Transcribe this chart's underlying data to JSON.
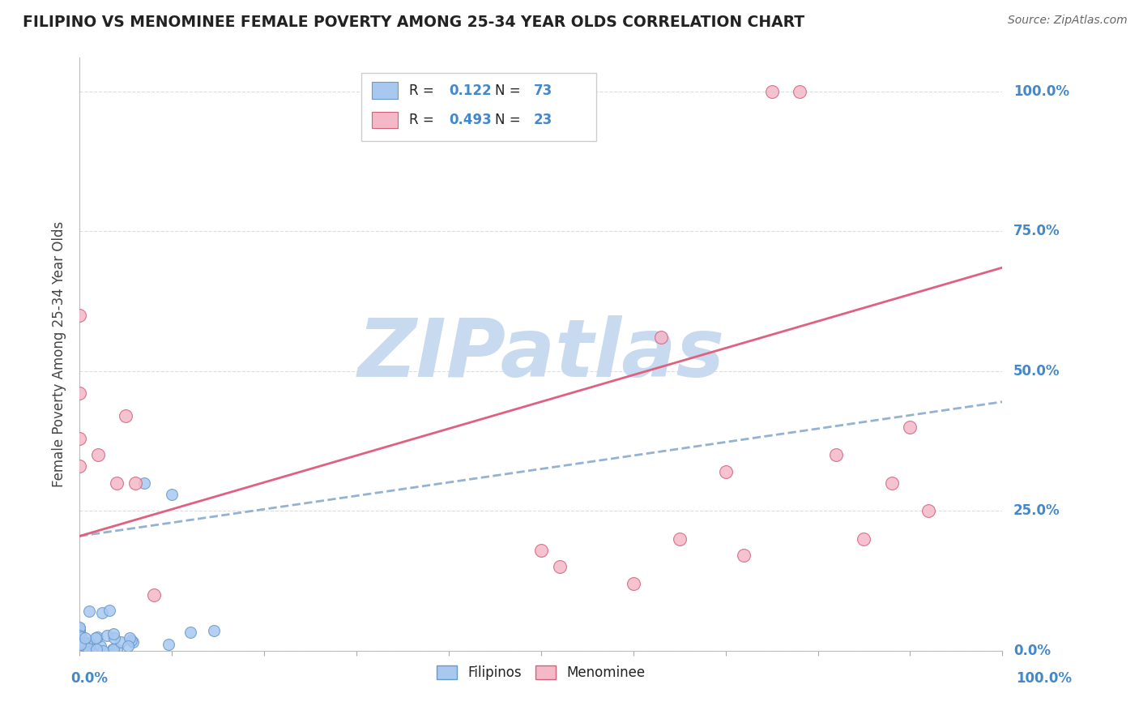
{
  "title": "FILIPINO VS MENOMINEE FEMALE POVERTY AMONG 25-34 YEAR OLDS CORRELATION CHART",
  "source": "Source: ZipAtlas.com",
  "ylabel": "Female Poverty Among 25-34 Year Olds",
  "xlim": [
    0,
    1
  ],
  "ylim": [
    0,
    1.05
  ],
  "ytick_vals": [
    0.0,
    0.25,
    0.5,
    0.75,
    1.0
  ],
  "ytick_labels": [
    "0.0%",
    "25.0%",
    "50.0%",
    "75.0%",
    "100.0%"
  ],
  "xtick_left_label": "0.0%",
  "xtick_right_label": "100.0%",
  "filipino_R": 0.122,
  "filipino_N": 73,
  "menominee_R": 0.493,
  "menominee_N": 23,
  "filipino_fill_color": "#a8c8f0",
  "filipino_edge_color": "#6699cc",
  "menominee_fill_color": "#f4b8c8",
  "menominee_edge_color": "#d4607a",
  "filipino_line_color": "#88aacc",
  "menominee_line_color": "#e06080",
  "tick_label_color": "#4488cc",
  "legend_text_color": "#4488cc",
  "title_color": "#222222",
  "source_color": "#666666",
  "watermark_text": "ZIPatlas",
  "watermark_color": "#c8daf0",
  "grid_color": "#dddddd",
  "background_color": "#ffffff",
  "legend_box_color": "#eeeeee",
  "bottom_legend_text_color": "#222222",
  "fil_line_intercept": 0.205,
  "fil_line_slope": 0.24,
  "men_line_intercept": 0.205,
  "men_line_slope": 0.48,
  "menominee_points_x": [
    0.0,
    0.0,
    0.0,
    0.0,
    0.02,
    0.04,
    0.05,
    0.06,
    0.08,
    0.5,
    0.52,
    0.6,
    0.63,
    0.65,
    0.7,
    0.72,
    0.75,
    0.78,
    0.82,
    0.85,
    0.88,
    0.9,
    0.92
  ],
  "menominee_points_y": [
    0.6,
    0.46,
    0.38,
    0.33,
    0.35,
    0.3,
    0.42,
    0.3,
    0.1,
    0.18,
    0.15,
    0.12,
    0.56,
    0.2,
    0.32,
    0.17,
    1.0,
    1.0,
    0.35,
    0.2,
    0.3,
    0.4,
    0.25
  ]
}
